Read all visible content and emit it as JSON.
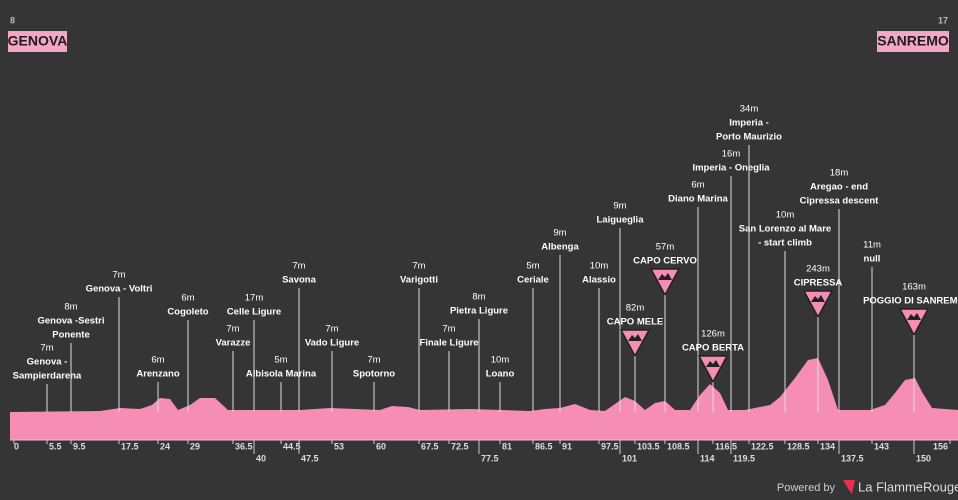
{
  "header": {
    "start_elevation": "8",
    "start": "GENOVA",
    "finish_elevation": "17",
    "finish": "SANREMO"
  },
  "waypoints": [
    {
      "elevation": "7m",
      "name": [
        "Genova -",
        "Sampierdarena"
      ],
      "km": 5.5,
      "climb": false
    },
    {
      "elevation": "8m",
      "name": [
        "Genova -Sestri",
        "Ponente"
      ],
      "km": 9.5,
      "climb": false
    },
    {
      "elevation": "7m",
      "name": [
        "Genova - Voltri"
      ],
      "km": 17.5,
      "climb": false
    },
    {
      "elevation": "6m",
      "name": [
        "Arenzano"
      ],
      "km": 24,
      "climb": false
    },
    {
      "elevation": "6m",
      "name": [
        "Cogoleto"
      ],
      "km": 29,
      "climb": false
    },
    {
      "elevation": "7m",
      "name": [
        "Varazze"
      ],
      "km": 36.5,
      "climb": false
    },
    {
      "elevation": "17m",
      "name": [
        "Celle Ligure"
      ],
      "km": 40,
      "climb": false
    },
    {
      "elevation": "5m",
      "name": [
        "Albisola Marina"
      ],
      "km": 44.5,
      "climb": false
    },
    {
      "elevation": "7m",
      "name": [
        "Savona"
      ],
      "km": 47.5,
      "climb": false
    },
    {
      "elevation": "7m",
      "name": [
        "Vado Ligure"
      ],
      "km": 53,
      "climb": false
    },
    {
      "elevation": "7m",
      "name": [
        "Spotorno"
      ],
      "km": 60,
      "climb": false
    },
    {
      "elevation": "7m",
      "name": [
        "Varigotti"
      ],
      "km": 67.5,
      "climb": false
    },
    {
      "elevation": "7m",
      "name": [
        "Finale Ligure"
      ],
      "km": 72.5,
      "climb": false
    },
    {
      "elevation": "8m",
      "name": [
        "Pietra Ligure"
      ],
      "km": 77.5,
      "climb": false
    },
    {
      "elevation": "10m",
      "name": [
        "Loano"
      ],
      "km": 81,
      "climb": false
    },
    {
      "elevation": "5m",
      "name": [
        "Ceriale"
      ],
      "km": 86.5,
      "climb": false
    },
    {
      "elevation": "9m",
      "name": [
        "Albenga"
      ],
      "km": 91,
      "climb": false
    },
    {
      "elevation": "10m",
      "name": [
        "Alassio"
      ],
      "km": 97.5,
      "climb": false
    },
    {
      "elevation": "9m",
      "name": [
        "Laigueglia"
      ],
      "km": 101,
      "climb": false
    },
    {
      "elevation": "82m",
      "name": [
        "CAPO MELE"
      ],
      "km": 103.5,
      "climb": true
    },
    {
      "elevation": "57m",
      "name": [
        "CAPO CERVO"
      ],
      "km": 108.5,
      "climb": true
    },
    {
      "elevation": "6m",
      "name": [
        "Diano Marina"
      ],
      "km": 114,
      "climb": false
    },
    {
      "elevation": "126m",
      "name": [
        "CAPO BERTA"
      ],
      "km": 116.5,
      "climb": true
    },
    {
      "elevation": "16m",
      "name": [
        "Imperia - Oneglia"
      ],
      "km": 119.5,
      "climb": false
    },
    {
      "elevation": "34m",
      "name": [
        "Imperia -",
        "Porto Maurizio"
      ],
      "km": 122.5,
      "climb": false
    },
    {
      "elevation": "10m",
      "name": [
        "San Lorenzo al Mare",
        "- start climb"
      ],
      "km": 128.5,
      "climb": false
    },
    {
      "elevation": "243m",
      "name": [
        "CIPRESSA"
      ],
      "km": 134,
      "climb": true
    },
    {
      "elevation": "18m",
      "name": [
        "Aregao - end",
        "Cipressa descent"
      ],
      "km": 137.5,
      "climb": false
    },
    {
      "elevation": "11m",
      "name": [
        "null"
      ],
      "km": 143,
      "climb": false
    },
    {
      "elevation": "163m",
      "name": [
        "POGGIO DI SANREMO"
      ],
      "km": 150,
      "climb": true
    }
  ],
  "km_markers": [
    0,
    5.5,
    9.5,
    17.5,
    24,
    29,
    36.5,
    40,
    44.5,
    47.5,
    53,
    60,
    67.5,
    72.5,
    77.5,
    81,
    86.5,
    91,
    97.5,
    101,
    103.5,
    108.5,
    114,
    116.5,
    119.5,
    122.5,
    128.5,
    134,
    137.5,
    143,
    150,
    156
  ],
  "footer": {
    "powered_by": "Powered by",
    "brand": "La FlammeRouge"
  }
}
